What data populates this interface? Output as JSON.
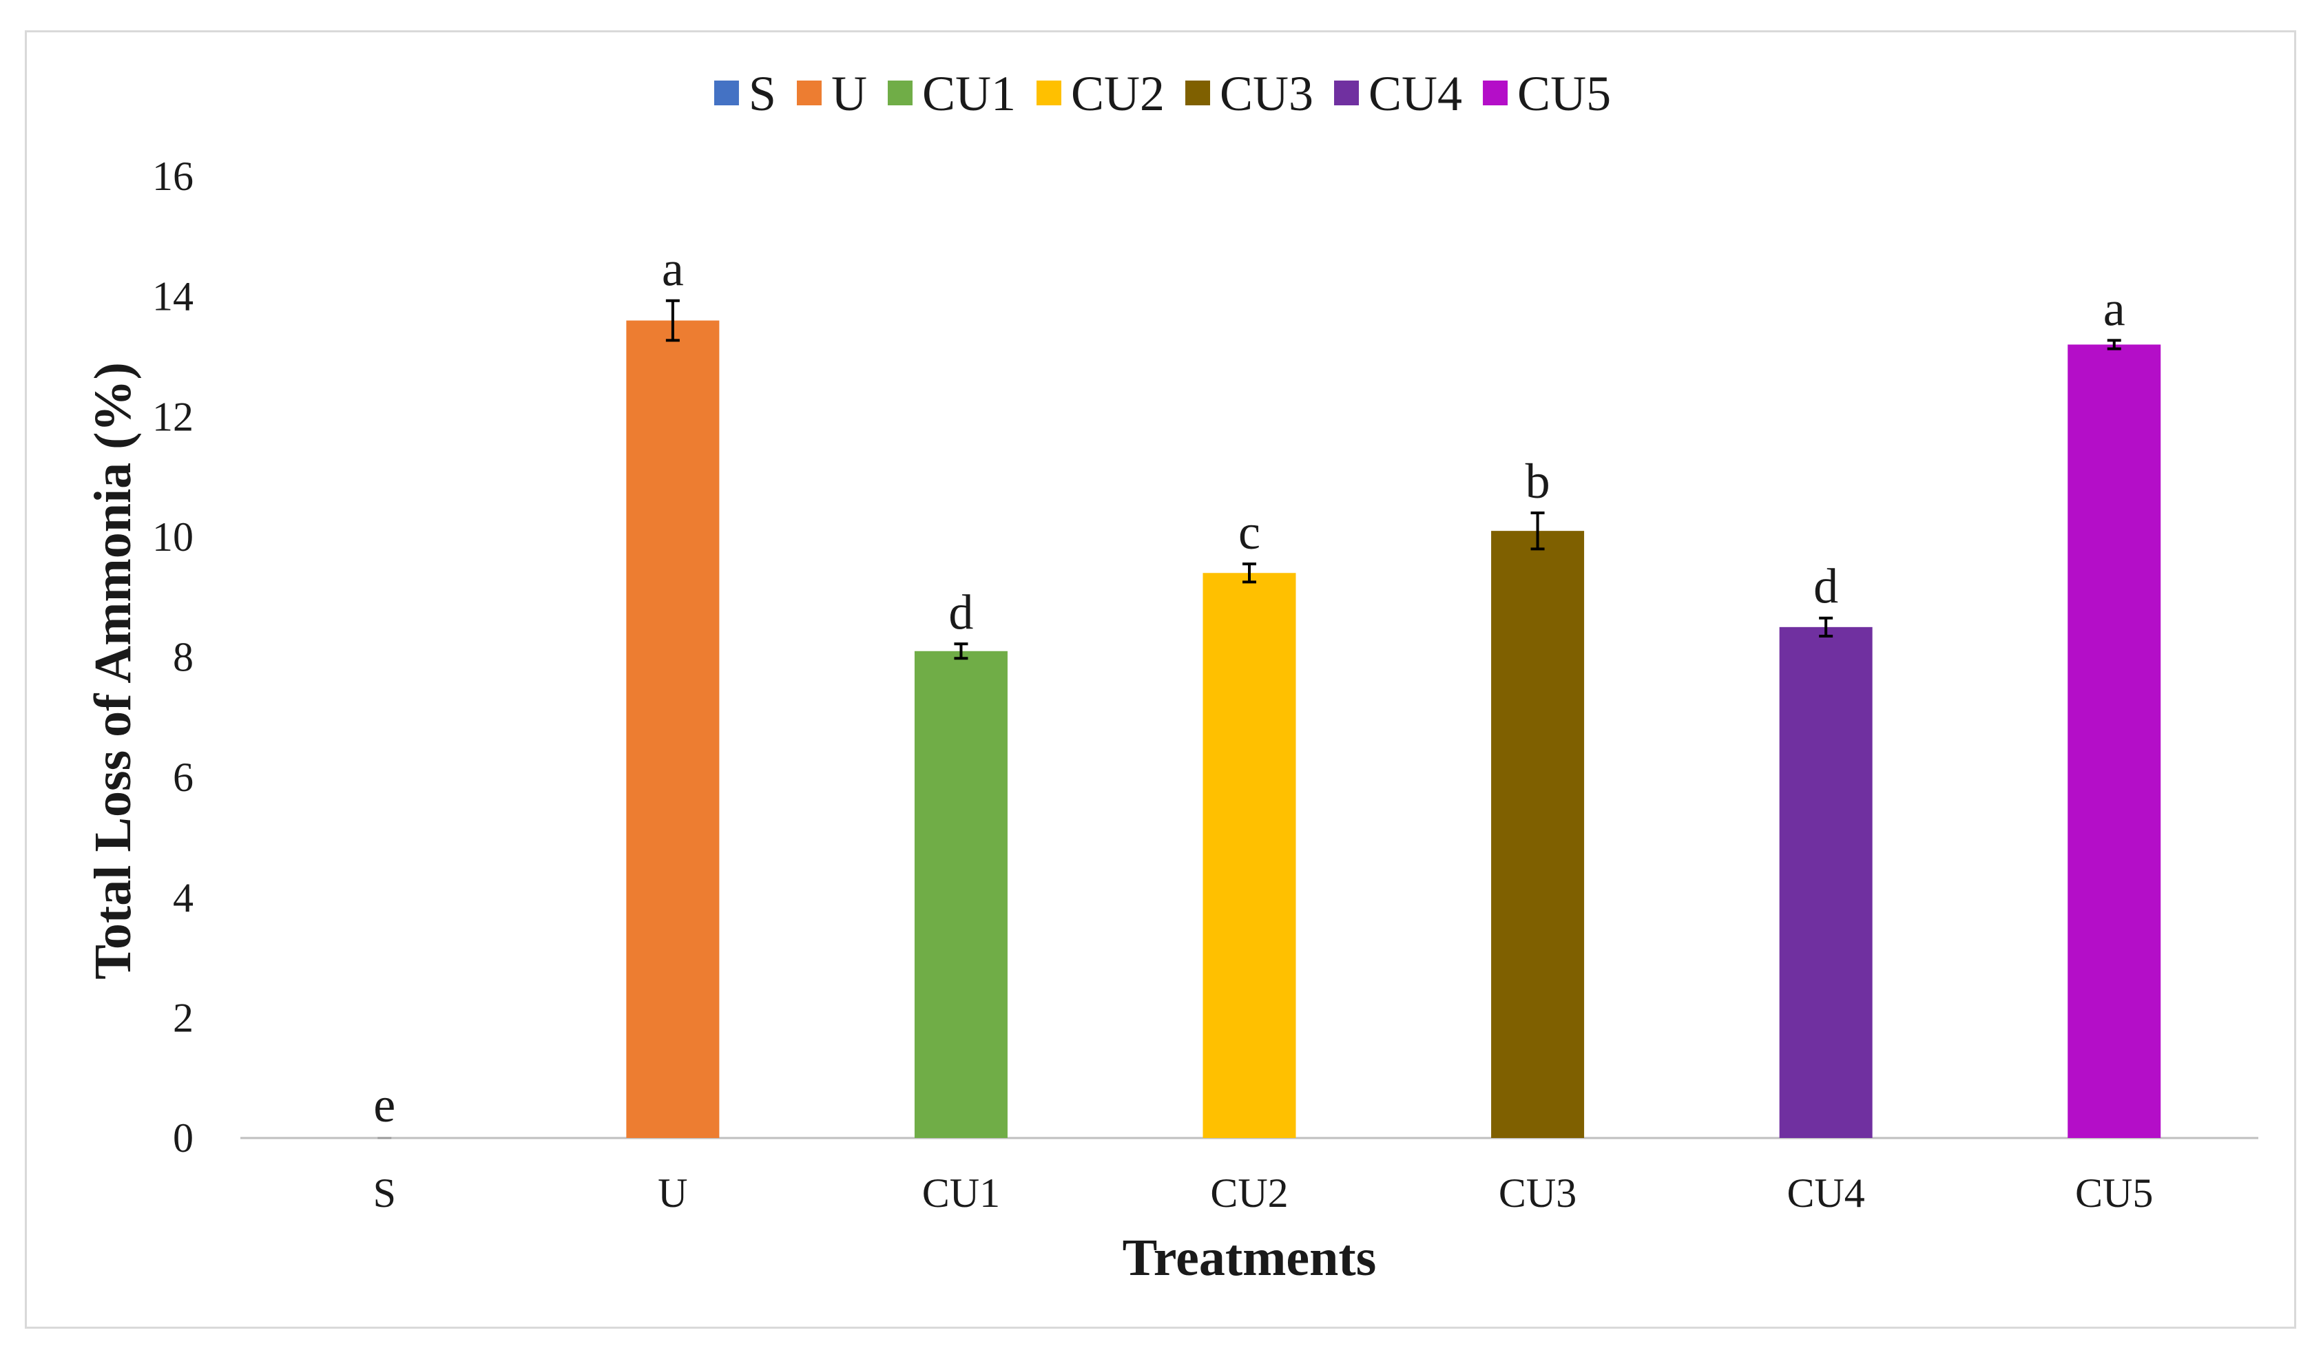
{
  "chart_data": {
    "type": "bar",
    "title": "",
    "xlabel": "Treatments",
    "ylabel": "Total  Loss of  Ammonia (%)",
    "ylim": [
      0,
      16
    ],
    "yticks": [
      0,
      2,
      4,
      6,
      8,
      10,
      12,
      14,
      16
    ],
    "grid": false,
    "legend_position": "top-center",
    "categories": [
      "S",
      "U",
      "CU1",
      "CU2",
      "CU3",
      "CU4",
      "CU5"
    ],
    "values": [
      0,
      13.6,
      8.1,
      9.4,
      10.1,
      8.5,
      13.2
    ],
    "errors": [
      0,
      0.33,
      0.12,
      0.15,
      0.3,
      0.15,
      0.07
    ],
    "significance": [
      "e",
      "a",
      "d",
      "c",
      "b",
      "d",
      "a"
    ],
    "colors": [
      "#4472C4",
      "#ED7D31",
      "#70AD47",
      "#FFC000",
      "#7F6000",
      "#7030A0",
      "#B40EC8"
    ]
  }
}
